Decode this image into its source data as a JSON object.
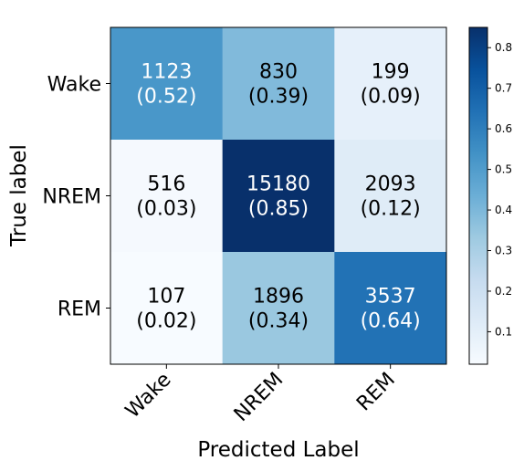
{
  "chart_data": {
    "type": "heatmap",
    "title": "",
    "xlabel": "Predicted Label",
    "ylabel": "True label",
    "x_categories": [
      "Wake",
      "NREM",
      "REM"
    ],
    "y_categories": [
      "Wake",
      "NREM",
      "REM"
    ],
    "counts": [
      [
        1123,
        830,
        199
      ],
      [
        516,
        15180,
        2093
      ],
      [
        107,
        1896,
        3537
      ]
    ],
    "proportions": [
      [
        "0.52",
        "0.39",
        "0.09"
      ],
      [
        "0.03",
        "0.85",
        "0.12"
      ],
      [
        "0.02",
        "0.34",
        "0.64"
      ]
    ],
    "colorscale": "Blues",
    "colorbar": {
      "range": [
        0.02,
        0.85
      ],
      "ticks": [
        "0.1",
        "0.2",
        "0.3",
        "0.4",
        "0.5",
        "0.6",
        "0.7",
        "0.8"
      ]
    }
  }
}
